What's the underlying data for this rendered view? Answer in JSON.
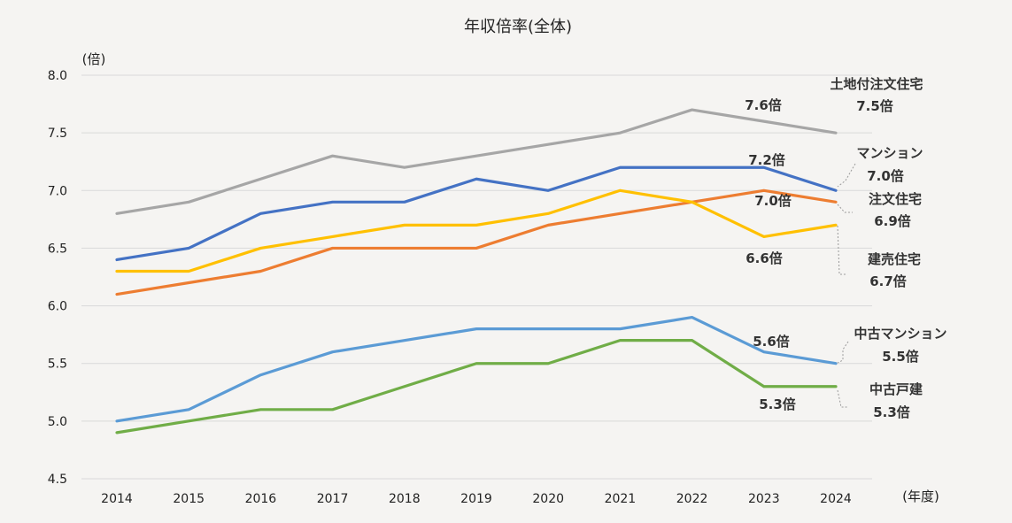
{
  "chart_data": {
    "type": "line",
    "title": "年収倍率(全体)",
    "ylabel": "(倍)",
    "xlabel": "(年度)",
    "ylim": [
      4.5,
      8.0
    ],
    "yticks": [
      "8.0",
      "7.5",
      "7.0",
      "6.5",
      "6.0",
      "5.5",
      "5.0",
      "4.5"
    ],
    "categories": [
      "2014",
      "2015",
      "2016",
      "2017",
      "2018",
      "2019",
      "2020",
      "2021",
      "2022",
      "2023",
      "2024"
    ],
    "grid": true,
    "series": [
      {
        "name": "土地付注文住宅",
        "color": "#a6a6a6",
        "values": [
          6.8,
          6.9,
          7.1,
          7.3,
          7.2,
          7.3,
          7.4,
          7.5,
          7.7,
          7.6,
          7.5
        ],
        "label_2023": "7.6倍",
        "end_label": "7.5倍"
      },
      {
        "name": "マンション",
        "color": "#4472c4",
        "values": [
          6.4,
          6.5,
          6.8,
          6.9,
          6.9,
          7.1,
          7.0,
          7.2,
          7.2,
          7.2,
          7.0
        ],
        "label_2023": "7.2倍",
        "end_label": "7.0倍"
      },
      {
        "name": "注文住宅",
        "color": "#ed7d31",
        "values": [
          6.1,
          6.2,
          6.3,
          6.5,
          6.5,
          6.5,
          6.7,
          6.8,
          6.9,
          7.0,
          6.9
        ],
        "label_2023": "7.0倍",
        "end_label": "6.9倍"
      },
      {
        "name": "建売住宅",
        "color": "#ffc000",
        "values": [
          6.3,
          6.3,
          6.5,
          6.6,
          6.7,
          6.7,
          6.8,
          7.0,
          6.9,
          6.6,
          6.7
        ],
        "label_2023": "6.6倍",
        "end_label": "6.7倍"
      },
      {
        "name": "中古マンション",
        "color": "#5b9bd5",
        "values": [
          5.0,
          5.1,
          5.4,
          5.6,
          5.7,
          5.8,
          5.8,
          5.8,
          5.9,
          5.6,
          5.5
        ],
        "label_2023": "5.6倍",
        "end_label": "5.5倍"
      },
      {
        "name": "中古戸建",
        "color": "#70ad47",
        "values": [
          4.9,
          5.0,
          5.1,
          5.1,
          5.3,
          5.5,
          5.5,
          5.7,
          5.7,
          5.3,
          5.3
        ],
        "label_2023": "5.3倍",
        "end_label": "5.3倍"
      }
    ]
  }
}
